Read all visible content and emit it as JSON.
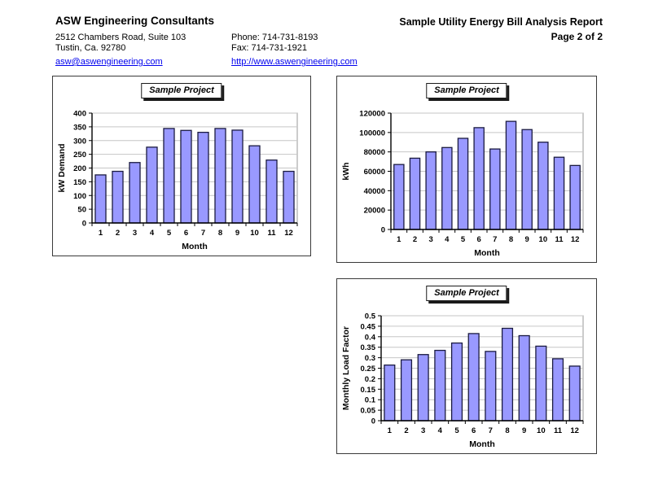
{
  "header": {
    "company": "ASW Engineering Consultants",
    "address_line1": "2512 Chambers Road, Suite 103",
    "address_line2": "Tustin, Ca. 92780",
    "phone": "Phone: 714-731-8193",
    "fax": "Fax: 714-731-1921",
    "email": "asw@aswengineering.com",
    "website": "http://www.aswengineering.com",
    "report_title": "Sample Utility Energy Bill Analysis Report",
    "page_label": "Page 2 of 2"
  },
  "colors": {
    "bar_fill": "#9999ff",
    "bar_border": "#1a1a40",
    "gridline": "#c6c6c6",
    "plot_border": "#9a9a9a",
    "axis": "#000000",
    "link": "#0000ee",
    "text": "#000000"
  },
  "chart_data": [
    {
      "id": "kw-demand",
      "type": "bar",
      "title": "Sample Project",
      "xlabel": "Month",
      "ylabel": "kW Demand",
      "categories": [
        "1",
        "2",
        "3",
        "4",
        "5",
        "6",
        "7",
        "8",
        "9",
        "10",
        "11",
        "12"
      ],
      "values": [
        175,
        188,
        220,
        276,
        344,
        337,
        330,
        344,
        338,
        281,
        229,
        188
      ],
      "ylim": [
        0,
        400
      ],
      "yticks": [
        0,
        50,
        100,
        150,
        200,
        250,
        300,
        350,
        400
      ],
      "ytick_labels": [
        "0",
        "50",
        "100",
        "150",
        "200",
        "250",
        "300",
        "350",
        "400"
      ],
      "grid": true,
      "legend": "none"
    },
    {
      "id": "kwh",
      "type": "bar",
      "title": "Sample Project",
      "xlabel": "Month",
      "ylabel": "kWh",
      "categories": [
        "1",
        "2",
        "3",
        "4",
        "5",
        "6",
        "7",
        "8",
        "9",
        "10",
        "11",
        "12"
      ],
      "values": [
        67000,
        73500,
        80000,
        84500,
        94000,
        105000,
        83000,
        111500,
        103000,
        90000,
        74500,
        66000
      ],
      "ylim": [
        0,
        120000
      ],
      "yticks": [
        0,
        20000,
        40000,
        60000,
        80000,
        100000,
        120000
      ],
      "ytick_labels": [
        "0",
        "20000",
        "40000",
        "60000",
        "80000",
        "100000",
        "120000"
      ],
      "grid": true,
      "legend": "none"
    },
    {
      "id": "load-factor",
      "type": "bar",
      "title": "Sample Project",
      "xlabel": "Month",
      "ylabel": "Monthly Load Factor",
      "categories": [
        "1",
        "2",
        "3",
        "4",
        "5",
        "6",
        "7",
        "8",
        "9",
        "10",
        "11",
        "12"
      ],
      "values": [
        0.265,
        0.29,
        0.315,
        0.335,
        0.37,
        0.415,
        0.33,
        0.44,
        0.405,
        0.355,
        0.295,
        0.26
      ],
      "ylim": [
        0,
        0.5
      ],
      "yticks": [
        0,
        0.05,
        0.1,
        0.15,
        0.2,
        0.25,
        0.3,
        0.35,
        0.4,
        0.45,
        0.5
      ],
      "ytick_labels": [
        "0",
        "0.05",
        "0.1",
        "0.15",
        "0.2",
        "0.25",
        "0.3",
        "0.35",
        "0.4",
        "0.45",
        "0.5"
      ],
      "grid": true,
      "legend": "none"
    }
  ]
}
